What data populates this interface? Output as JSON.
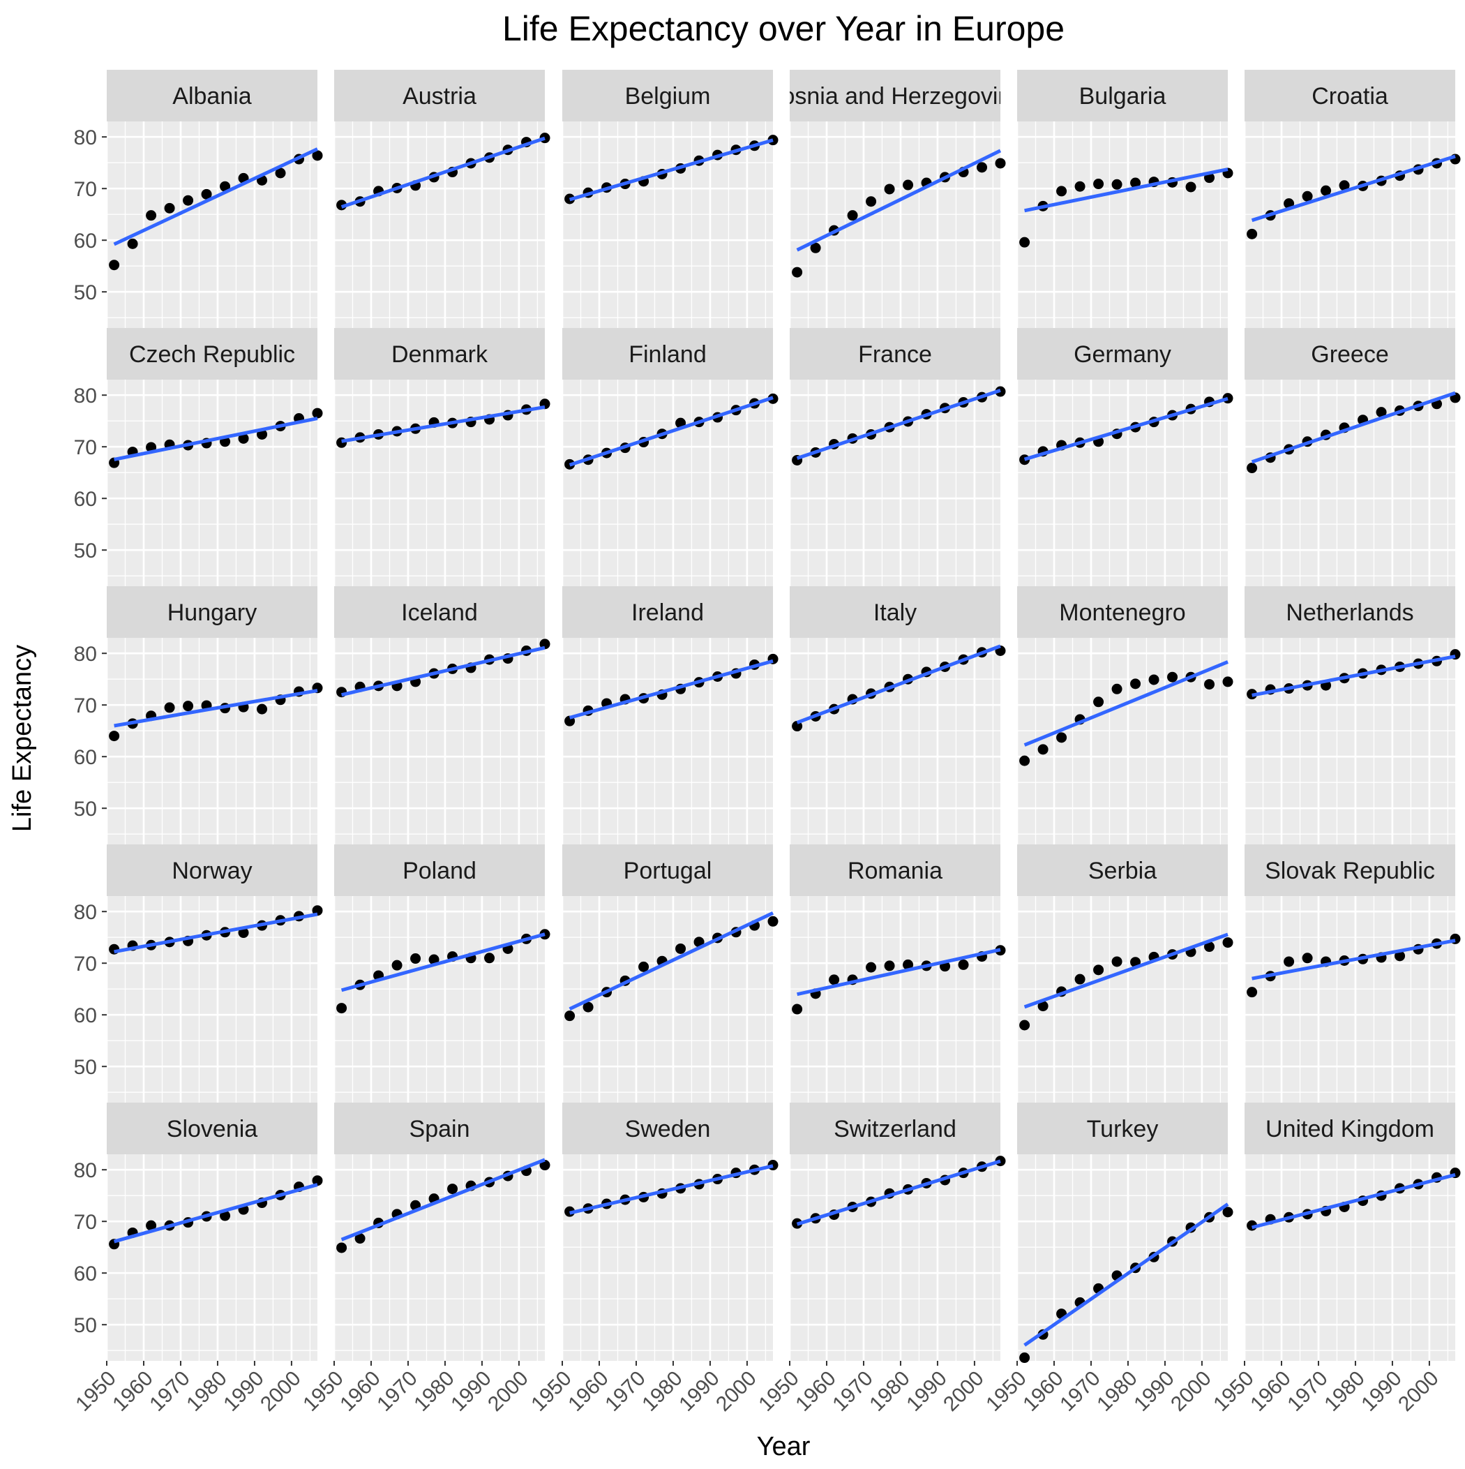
{
  "chart_data": {
    "type": "scatter",
    "title": "Life Expectancy over Year in Europe",
    "xlabel": "Year",
    "ylabel": "Life Expectancy",
    "xlim": [
      1950,
      2007
    ],
    "ylim": [
      43,
      83
    ],
    "x_ticks": [
      1950,
      1960,
      1970,
      1980,
      1990,
      2000
    ],
    "y_ticks": [
      50,
      60,
      70,
      80
    ],
    "grid": true,
    "trend_line": "linear",
    "colors": {
      "panel_background": "#ebebeb",
      "strip_background": "#d9d9d9",
      "gridline": "#ffffff",
      "point": "#000000",
      "trend_line": "#3366ff",
      "text": "#1a1a1a",
      "tick_label": "#4d4d4d"
    },
    "x": [
      1952,
      1957,
      1962,
      1967,
      1972,
      1977,
      1982,
      1987,
      1992,
      1997,
      2002,
      2007
    ],
    "facets": [
      {
        "country": "Albania",
        "values": [
          55.2,
          59.3,
          64.8,
          66.2,
          67.7,
          68.9,
          70.4,
          72.0,
          71.6,
          73.0,
          75.7,
          76.4
        ]
      },
      {
        "country": "Austria",
        "values": [
          66.8,
          67.5,
          69.5,
          70.1,
          70.6,
          72.2,
          73.2,
          74.9,
          76.0,
          77.5,
          79.0,
          79.8
        ]
      },
      {
        "country": "Belgium",
        "values": [
          68.0,
          69.2,
          70.2,
          70.9,
          71.4,
          72.8,
          73.9,
          75.4,
          76.5,
          77.5,
          78.3,
          79.4
        ]
      },
      {
        "country": "Bosnia and Herzegovina",
        "values": [
          53.8,
          58.5,
          61.9,
          64.8,
          67.5,
          69.9,
          70.7,
          71.1,
          72.2,
          73.2,
          74.1,
          74.9
        ]
      },
      {
        "country": "Bulgaria",
        "values": [
          59.6,
          66.6,
          69.5,
          70.4,
          70.9,
          70.8,
          71.1,
          71.3,
          71.2,
          70.3,
          72.1,
          73.0
        ]
      },
      {
        "country": "Croatia",
        "values": [
          61.2,
          64.8,
          67.1,
          68.5,
          69.6,
          70.6,
          70.5,
          71.5,
          72.5,
          73.7,
          74.9,
          75.7
        ]
      },
      {
        "country": "Czech Republic",
        "values": [
          66.9,
          69.0,
          69.9,
          70.4,
          70.3,
          70.7,
          71.0,
          71.6,
          72.4,
          74.0,
          75.5,
          76.5
        ]
      },
      {
        "country": "Denmark",
        "values": [
          70.8,
          71.8,
          72.4,
          73.0,
          73.5,
          74.7,
          74.6,
          74.8,
          75.3,
          76.1,
          77.2,
          78.3
        ]
      },
      {
        "country": "Finland",
        "values": [
          66.6,
          67.5,
          68.8,
          69.8,
          70.9,
          72.5,
          74.6,
          74.8,
          75.7,
          77.1,
          78.4,
          79.3
        ]
      },
      {
        "country": "France",
        "values": [
          67.4,
          68.9,
          70.5,
          71.6,
          72.4,
          73.8,
          74.9,
          76.3,
          77.5,
          78.6,
          79.6,
          80.7
        ]
      },
      {
        "country": "Germany",
        "values": [
          67.5,
          69.1,
          70.3,
          70.8,
          71.0,
          72.5,
          73.8,
          74.8,
          76.1,
          77.3,
          78.7,
          79.4
        ]
      },
      {
        "country": "Greece",
        "values": [
          65.9,
          67.9,
          69.5,
          71.0,
          72.3,
          73.7,
          75.2,
          76.7,
          77.0,
          77.9,
          78.3,
          79.5
        ]
      },
      {
        "country": "Hungary",
        "values": [
          64.0,
          66.4,
          67.9,
          69.5,
          69.8,
          69.9,
          69.4,
          69.6,
          69.2,
          71.0,
          72.6,
          73.3
        ]
      },
      {
        "country": "Iceland",
        "values": [
          72.5,
          73.5,
          73.7,
          73.7,
          74.5,
          76.1,
          77.0,
          77.2,
          78.8,
          79.0,
          80.5,
          81.8
        ]
      },
      {
        "country": "Ireland",
        "values": [
          66.9,
          68.9,
          70.3,
          71.1,
          71.3,
          72.0,
          73.1,
          74.4,
          75.5,
          76.1,
          77.8,
          78.9
        ]
      },
      {
        "country": "Italy",
        "values": [
          65.9,
          67.8,
          69.2,
          71.1,
          72.2,
          73.5,
          75.0,
          76.4,
          77.4,
          78.8,
          80.2,
          80.5
        ]
      },
      {
        "country": "Montenegro",
        "values": [
          59.2,
          61.4,
          63.7,
          67.2,
          70.6,
          73.1,
          74.1,
          74.9,
          75.4,
          75.4,
          74.0,
          74.5
        ]
      },
      {
        "country": "Netherlands",
        "values": [
          72.1,
          73.0,
          73.2,
          73.8,
          73.8,
          75.2,
          76.1,
          76.8,
          77.4,
          78.0,
          78.5,
          79.8
        ]
      },
      {
        "country": "Norway",
        "values": [
          72.7,
          73.4,
          73.5,
          74.1,
          74.3,
          75.4,
          76.0,
          75.9,
          77.3,
          78.3,
          79.1,
          80.2
        ]
      },
      {
        "country": "Poland",
        "values": [
          61.3,
          65.8,
          67.6,
          69.6,
          70.9,
          70.7,
          71.3,
          71.0,
          71.0,
          72.8,
          74.7,
          75.6
        ]
      },
      {
        "country": "Portugal",
        "values": [
          59.8,
          61.5,
          64.4,
          66.6,
          69.3,
          70.4,
          72.8,
          74.1,
          74.9,
          76.0,
          77.3,
          78.1
        ]
      },
      {
        "country": "Romania",
        "values": [
          61.1,
          64.1,
          66.8,
          66.8,
          69.2,
          69.5,
          69.7,
          69.5,
          69.4,
          69.7,
          71.3,
          72.5
        ]
      },
      {
        "country": "Serbia",
        "values": [
          58.0,
          61.7,
          64.5,
          66.9,
          68.7,
          70.3,
          70.2,
          71.2,
          71.7,
          72.2,
          73.2,
          74.0
        ]
      },
      {
        "country": "Slovak Republic",
        "values": [
          64.4,
          67.5,
          70.3,
          71.0,
          70.3,
          70.5,
          70.8,
          71.1,
          71.4,
          72.7,
          73.8,
          74.7
        ]
      },
      {
        "country": "Slovenia",
        "values": [
          65.6,
          67.8,
          69.2,
          69.2,
          69.8,
          70.97,
          71.1,
          72.3,
          73.6,
          75.1,
          76.7,
          77.9
        ]
      },
      {
        "country": "Spain",
        "values": [
          64.9,
          66.7,
          69.7,
          71.4,
          73.1,
          74.4,
          76.3,
          76.9,
          77.6,
          78.8,
          79.8,
          80.9
        ]
      },
      {
        "country": "Sweden",
        "values": [
          71.9,
          72.5,
          73.4,
          74.2,
          74.7,
          75.4,
          76.4,
          77.2,
          78.2,
          79.4,
          80.0,
          80.9
        ]
      },
      {
        "country": "Switzerland",
        "values": [
          69.6,
          70.6,
          71.3,
          72.8,
          73.8,
          75.4,
          76.2,
          77.4,
          78.0,
          79.4,
          80.6,
          81.7
        ]
      },
      {
        "country": "Turkey",
        "values": [
          43.6,
          48.1,
          52.1,
          54.3,
          57.0,
          59.5,
          61.0,
          63.1,
          66.1,
          68.8,
          70.8,
          71.8
        ]
      },
      {
        "country": "United Kingdom",
        "values": [
          69.2,
          70.4,
          70.8,
          71.4,
          72.0,
          72.8,
          74.0,
          75.0,
          76.4,
          77.2,
          78.5,
          79.4
        ]
      }
    ]
  }
}
